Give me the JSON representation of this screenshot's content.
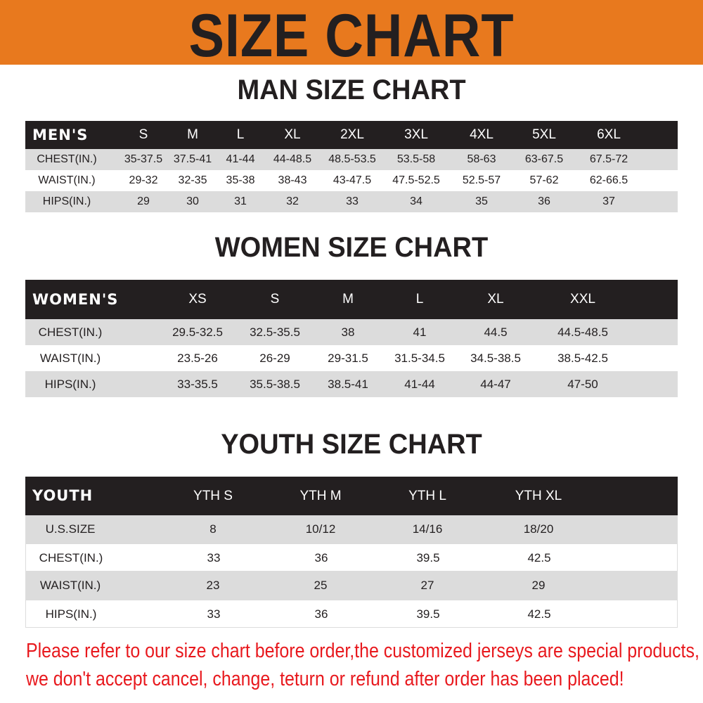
{
  "banner": {
    "title": "SIZE CHART",
    "color": "#e8791e"
  },
  "men": {
    "title": "MAN SIZE CHART",
    "header": "MEN'S",
    "sizes": [
      "S",
      "M",
      "L",
      "XL",
      "2XL",
      "3XL",
      "4XL",
      "5XL",
      "6XL"
    ],
    "rows": [
      {
        "label": "CHEST(IN.)",
        "values": [
          "35-37.5",
          "37.5-41",
          "41-44",
          "44-48.5",
          "48.5-53.5",
          "53.5-58",
          "58-63",
          "63-67.5",
          "67.5-72"
        ]
      },
      {
        "label": "WAIST(IN.)",
        "values": [
          "29-32",
          "32-35",
          "35-38",
          "38-43",
          "43-47.5",
          "47.5-52.5",
          "52.5-57",
          "57-62",
          "62-66.5"
        ]
      },
      {
        "label": "HIPS(IN.)",
        "values": [
          "29",
          "30",
          "31",
          "32",
          "33",
          "34",
          "35",
          "36",
          "37"
        ]
      }
    ]
  },
  "women": {
    "title": "WOMEN SIZE CHART",
    "header": "WOMEN'S",
    "sizes": [
      "XS",
      "S",
      "M",
      "L",
      "XL",
      "XXL"
    ],
    "rows": [
      {
        "label": "CHEST(IN.)",
        "values": [
          "29.5-32.5",
          "32.5-35.5",
          "38",
          "41",
          "44.5",
          "44.5-48.5"
        ]
      },
      {
        "label": "WAIST(IN.)",
        "values": [
          "23.5-26",
          "26-29",
          "29-31.5",
          "31.5-34.5",
          "34.5-38.5",
          "38.5-42.5"
        ]
      },
      {
        "label": "HIPS(IN.)",
        "values": [
          "33-35.5",
          "35.5-38.5",
          "38.5-41",
          "41-44",
          "44-47",
          "47-50"
        ]
      }
    ]
  },
  "youth": {
    "title": "YOUTH SIZE CHART",
    "header": "YOUTH",
    "sizes": [
      "YTH S",
      "YTH M",
      "YTH L",
      "YTH XL"
    ],
    "rows": [
      {
        "label": "U.S.SIZE",
        "values": [
          "8",
          "10/12",
          "14/16",
          "18/20"
        ]
      },
      {
        "label": "CHEST(IN.)",
        "values": [
          "33",
          "36",
          "39.5",
          "42.5"
        ]
      },
      {
        "label": "WAIST(IN.)",
        "values": [
          "23",
          "25",
          "27",
          "29"
        ]
      },
      {
        "label": "HIPS(IN.)",
        "values": [
          "33",
          "36",
          "39.5",
          "42.5"
        ]
      }
    ]
  },
  "notice": {
    "line1": "Please refer to our size chart before order,the customized jerseys are special products,",
    "line2": "we don't accept cancel, change, teturn or refund after order has been placed!",
    "color": "#e8191e"
  }
}
